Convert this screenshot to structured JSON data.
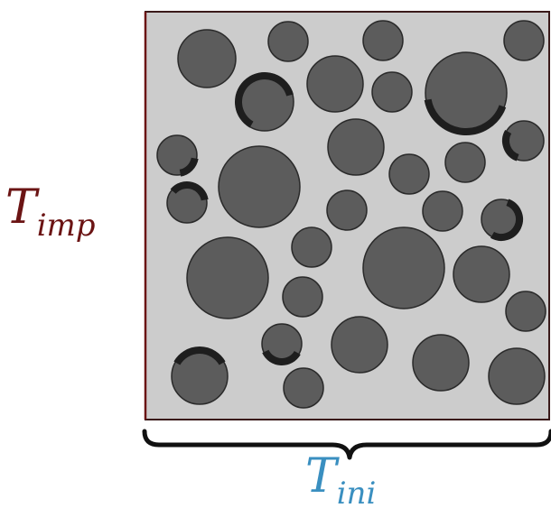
{
  "labels": {
    "vertical": {
      "main": "T",
      "sub": "imp",
      "color": "#6b1414"
    },
    "horizontal": {
      "main": "T",
      "sub": "ini",
      "color": "#3a8fc0"
    }
  },
  "colors": {
    "box_fill": "#cccccc",
    "box_border": "#6b1414",
    "particle_fill": "#5c5c5c",
    "particle_stroke": "#2a2a2a",
    "arc_stroke": "#1e1e1e",
    "brace": "#111111"
  }
}
